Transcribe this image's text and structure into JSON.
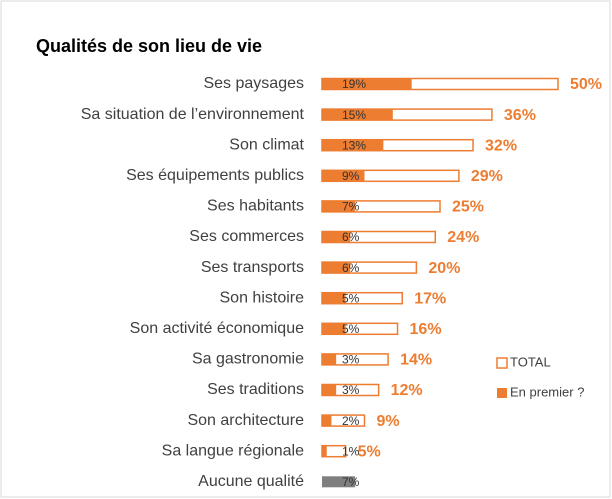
{
  "chart_data": {
    "type": "bar",
    "orientation": "horizontal",
    "title": "Qualités de son lieu de vie",
    "categories": [
      "Ses paysages",
      "Sa situation de l’environnement",
      "Son climat",
      "Ses équipements publics",
      "Ses habitants",
      "Ses commerces",
      "Ses transports",
      "Son histoire",
      "Son activité économique",
      "Sa gastronomie",
      "Ses traditions",
      "Son architecture",
      "Sa langue régionale",
      "Aucune qualité"
    ],
    "series": [
      {
        "name": "TOTAL",
        "color": "#ed7d31",
        "style": "outline",
        "values": [
          50,
          36,
          32,
          29,
          25,
          24,
          20,
          17,
          16,
          14,
          12,
          9,
          5,
          null
        ],
        "value_labels": [
          "50%",
          "36%",
          "32%",
          "29%",
          "25%",
          "24%",
          "20%",
          "17%",
          "16%",
          "14%",
          "12%",
          "9%",
          "5%",
          null
        ]
      },
      {
        "name": "En premier ?",
        "color": "#ed7d31",
        "style": "filled",
        "colors": [
          "#ed7d31",
          "#ed7d31",
          "#ed7d31",
          "#ed7d31",
          "#ed7d31",
          "#ed7d31",
          "#ed7d31",
          "#ed7d31",
          "#ed7d31",
          "#ed7d31",
          "#ed7d31",
          "#ed7d31",
          "#ed7d31",
          "#7f7f7f"
        ],
        "values": [
          19,
          15,
          13,
          9,
          7,
          6,
          6,
          5,
          5,
          3,
          3,
          2,
          1,
          7
        ],
        "value_labels": [
          "19%",
          "15%",
          "13%",
          "9%",
          "7%",
          "6%",
          "6%",
          "5%",
          "5%",
          "3%",
          "3%",
          "2%",
          "1%",
          "7%"
        ]
      }
    ],
    "xlim": [
      0,
      50
    ]
  }
}
